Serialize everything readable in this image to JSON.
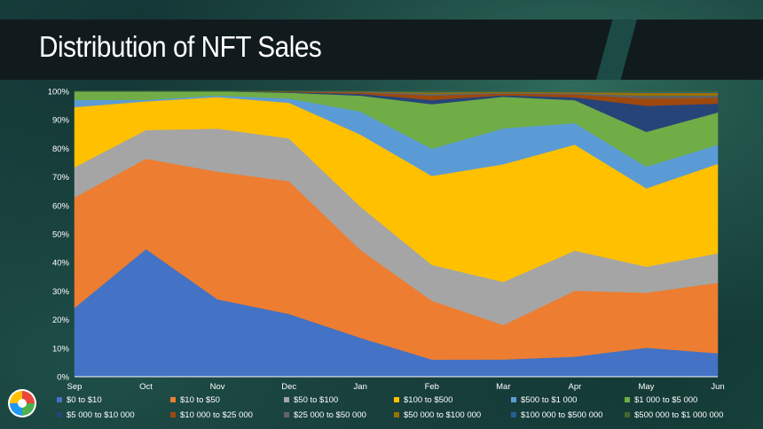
{
  "slide": {
    "title": "Distribution of NFT Sales"
  },
  "chart_data": {
    "type": "area",
    "stacked": true,
    "percent": true,
    "title": "Distribution of NFT Sales",
    "categories": [
      "Sep",
      "Oct",
      "Nov",
      "Dec",
      "Jan",
      "Feb",
      "Mar",
      "Apr",
      "May",
      "Jun"
    ],
    "yticks": [
      "0%",
      "10%",
      "20%",
      "30%",
      "40%",
      "50%",
      "60%",
      "70%",
      "80%",
      "90%",
      "100%"
    ],
    "ylim": [
      0,
      100
    ],
    "legend_position": "bottom",
    "series": [
      {
        "name": "$0 to $10",
        "color": "#4472C4",
        "values": [
          24,
          44.5,
          27,
          22,
          13.5,
          6,
          6,
          7,
          10,
          8
        ]
      },
      {
        "name": "$10 to $50",
        "color": "#ED7D31",
        "values": [
          38.5,
          31.5,
          44.5,
          46.5,
          30.5,
          20.5,
          12,
          23,
          19,
          24
        ]
      },
      {
        "name": "$50 to $100",
        "color": "#A5A5A5",
        "values": [
          10.5,
          10,
          15,
          15,
          15,
          12.5,
          15,
          14,
          9,
          10
        ]
      },
      {
        "name": "$100 to $500",
        "color": "#FFC000",
        "values": [
          21,
          10,
          11,
          12.5,
          25,
          31,
          41,
          37,
          27,
          30.5
        ]
      },
      {
        "name": "$500 to $1 000",
        "color": "#5B9BD5",
        "values": [
          2.5,
          0.5,
          0.5,
          1.5,
          8,
          9.5,
          12.5,
          7.5,
          7.5,
          6.5
        ]
      },
      {
        "name": "$1 000 to $5 000",
        "color": "#70AD47",
        "values": [
          3,
          3,
          1.5,
          2,
          5.5,
          15.5,
          11,
          8,
          12,
          11
        ]
      },
      {
        "name": "$5 000 to $10 000",
        "color": "#264478",
        "values": [
          0,
          0,
          0,
          0.2,
          0.6,
          1.5,
          0.5,
          1,
          9,
          3
        ]
      },
      {
        "name": "$10 000 to $25 000",
        "color": "#9E480E",
        "values": [
          0,
          0,
          0,
          0.2,
          0.5,
          1.5,
          0.6,
          1,
          2.5,
          2
        ]
      },
      {
        "name": "$25 000 to $50 000",
        "color": "#636363",
        "values": [
          0,
          0,
          0,
          0.1,
          0.2,
          0.6,
          0.3,
          0.4,
          1,
          0.8
        ]
      },
      {
        "name": "$50 000 to $100 000",
        "color": "#997300",
        "values": [
          0,
          0,
          0,
          0,
          0.1,
          0.5,
          0.3,
          0.4,
          1,
          0.9
        ]
      },
      {
        "name": "$100 000 to $500 000",
        "color": "#255E91",
        "values": [
          0,
          0,
          0,
          0,
          0.1,
          0.2,
          0.1,
          0.2,
          0.3,
          0.3
        ]
      },
      {
        "name": "$500 000 to $1 000 000",
        "color": "#43682B",
        "values": [
          0,
          0,
          0,
          0,
          0,
          0.2,
          0.1,
          0.1,
          0.2,
          0.2
        ]
      }
    ]
  }
}
